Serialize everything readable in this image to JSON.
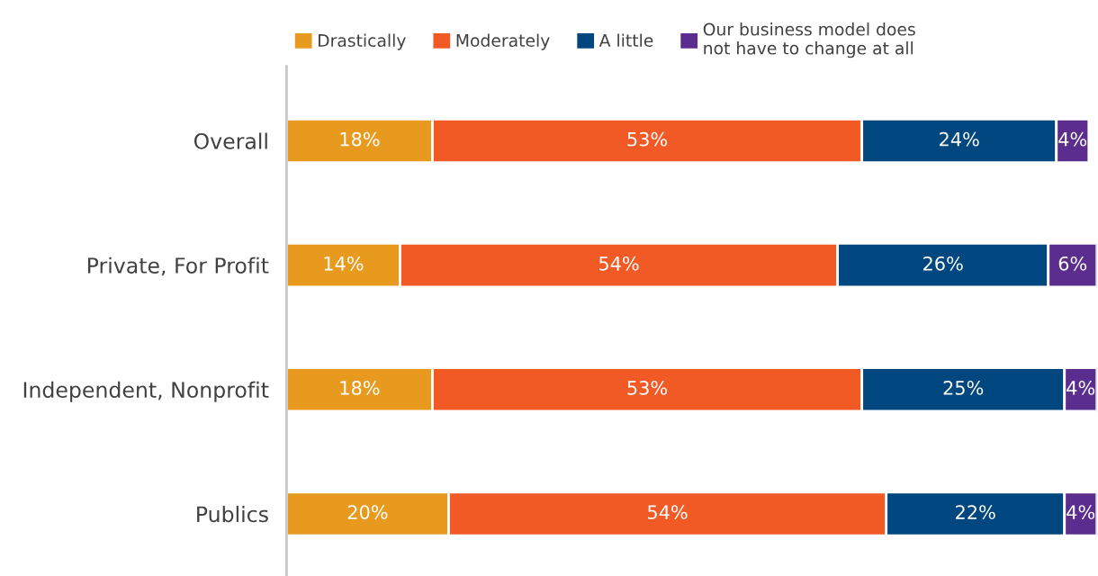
{
  "chart_data": {
    "type": "bar",
    "orientation": "horizontal",
    "stacked": true,
    "tick_labels": "y",
    "grid": false,
    "legend": "top",
    "categories": [
      "Overall",
      "Private, For Profit",
      "Independent, Nonprofit",
      "Publics"
    ],
    "series": [
      {
        "name": "Drastically",
        "color": "#e89a1e",
        "values": [
          18,
          14,
          18,
          20
        ],
        "value_labels": [
          "18%",
          "14%",
          "18%",
          "20%"
        ]
      },
      {
        "name": "Moderately",
        "color": "#f15a24",
        "values": [
          53,
          54,
          53,
          54
        ],
        "value_labels": [
          "53%",
          "54%",
          "53%",
          "54%"
        ]
      },
      {
        "name": "A little",
        "color": "#00467f",
        "values": [
          24,
          26,
          25,
          22
        ],
        "value_labels": [
          "24%",
          "26%",
          "25%",
          "22%"
        ]
      },
      {
        "name": "Our business model does\nnot have to change at all",
        "color": "#5b2d8e",
        "values": [
          4,
          6,
          4,
          4
        ],
        "value_labels": [
          "4%",
          "6%",
          "4%",
          "4%"
        ]
      }
    ]
  }
}
